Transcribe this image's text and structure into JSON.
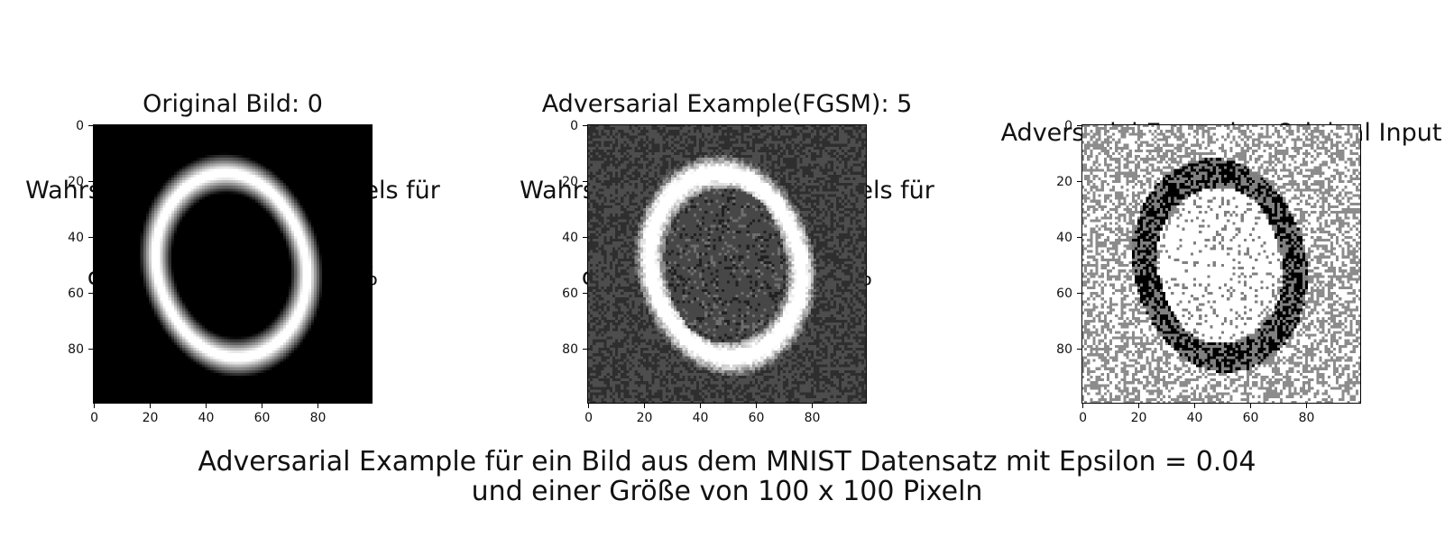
{
  "figure": {
    "suptitle_line1": "Adversarial Example für ein Bild aus dem MNIST Datensatz mit Epsilon = 0.04",
    "suptitle_line2": "und einer Größe von 100 x 100 Pixeln"
  },
  "chart_data": [
    {
      "type": "heatmap",
      "title_lines": [
        "Original Bild: 0",
        "Wahrscheinlichkeit des Models für",
        "dieses Label:    94.81 %"
      ],
      "colormap": "gray",
      "image_size": [
        100,
        100
      ],
      "xticks": [
        0,
        20,
        40,
        60,
        80
      ],
      "yticks": [
        0,
        20,
        40,
        60,
        80
      ],
      "content": "handwritten digit 0, white stroke on black background"
    },
    {
      "type": "heatmap",
      "title_lines": [
        "Adversarial Example(FGSM): 5",
        "Wahrscheinlichkeit des Models für",
        "dieses Label:    98.18 %"
      ],
      "colormap": "gray",
      "image_size": [
        100,
        100
      ],
      "xticks": [
        0,
        20,
        40,
        60,
        80
      ],
      "yticks": [
        0,
        20,
        40,
        60,
        80
      ],
      "content": "digit 0 with FGSM noise added"
    },
    {
      "type": "heatmap",
      "title_lines": [
        "Adversarial Example - Original Input"
      ],
      "colormap": "gray",
      "image_size": [
        100,
        100
      ],
      "xticks": [
        0,
        20,
        40,
        60,
        80
      ],
      "yticks": [
        0,
        20,
        40,
        60,
        80
      ],
      "content": "difference image (perturbation)"
    }
  ]
}
